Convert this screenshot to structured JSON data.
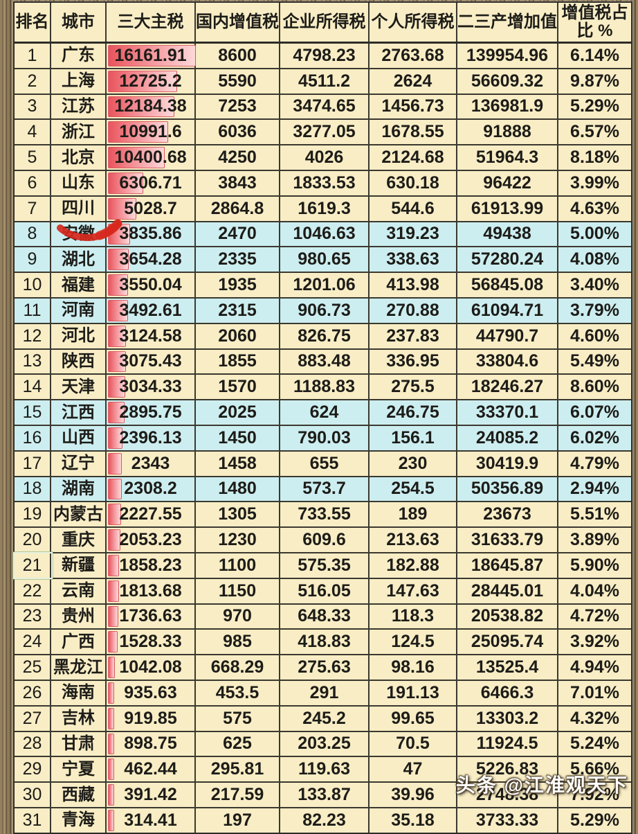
{
  "chart_data": {
    "type": "table",
    "columns": [
      "排名",
      "城市",
      "三大主税",
      "国内增值税",
      "企业所得税",
      "个人所得税",
      "二三产增加值",
      "增值税占\n比 %"
    ],
    "max_main_tax": 16161.91,
    "rows": [
      {
        "rank": "1",
        "city": "广东",
        "main_tax": "16161.91",
        "domestic_vat": "8600",
        "corporate_income_tax": "4798.23",
        "personal_income_tax": "2763.68",
        "secondary_tertiary_added_value": "139954.96",
        "vat_share": "6.14%",
        "highlighted": false
      },
      {
        "rank": "2",
        "city": "上海",
        "main_tax": "12725.2",
        "domestic_vat": "5590",
        "corporate_income_tax": "4511.2",
        "personal_income_tax": "2624",
        "secondary_tertiary_added_value": "56609.32",
        "vat_share": "9.87%",
        "highlighted": false
      },
      {
        "rank": "3",
        "city": "江苏",
        "main_tax": "12184.38",
        "domestic_vat": "7253",
        "corporate_income_tax": "3474.65",
        "personal_income_tax": "1456.73",
        "secondary_tertiary_added_value": "136981.9",
        "vat_share": "5.29%",
        "highlighted": false
      },
      {
        "rank": "4",
        "city": "浙江",
        "main_tax": "10991.6",
        "domestic_vat": "6036",
        "corporate_income_tax": "3277.05",
        "personal_income_tax": "1678.55",
        "secondary_tertiary_added_value": "91888",
        "vat_share": "6.57%",
        "highlighted": false
      },
      {
        "rank": "5",
        "city": "北京",
        "main_tax": "10400.68",
        "domestic_vat": "4250",
        "corporate_income_tax": "4026",
        "personal_income_tax": "2124.68",
        "secondary_tertiary_added_value": "51964.3",
        "vat_share": "8.18%",
        "highlighted": false
      },
      {
        "rank": "6",
        "city": "山东",
        "main_tax": "6306.71",
        "domestic_vat": "3843",
        "corporate_income_tax": "1833.53",
        "personal_income_tax": "630.18",
        "secondary_tertiary_added_value": "96422",
        "vat_share": "3.99%",
        "highlighted": false
      },
      {
        "rank": "7",
        "city": "四川",
        "main_tax": "5028.7",
        "domestic_vat": "2864.8",
        "corporate_income_tax": "1619.3",
        "personal_income_tax": "544.6",
        "secondary_tertiary_added_value": "61913.99",
        "vat_share": "4.63%",
        "highlighted": false
      },
      {
        "rank": "8",
        "city": "安徽",
        "main_tax": "3835.86",
        "domestic_vat": "2470",
        "corporate_income_tax": "1046.63",
        "personal_income_tax": "319.23",
        "secondary_tertiary_added_value": "49438",
        "vat_share": "5.00%",
        "highlighted": true
      },
      {
        "rank": "9",
        "city": "湖北",
        "main_tax": "3654.28",
        "domestic_vat": "2335",
        "corporate_income_tax": "980.65",
        "personal_income_tax": "338.63",
        "secondary_tertiary_added_value": "57280.24",
        "vat_share": "4.08%",
        "highlighted": true
      },
      {
        "rank": "10",
        "city": "福建",
        "main_tax": "3550.04",
        "domestic_vat": "1935",
        "corporate_income_tax": "1201.06",
        "personal_income_tax": "413.98",
        "secondary_tertiary_added_value": "56845.08",
        "vat_share": "3.40%",
        "highlighted": false
      },
      {
        "rank": "11",
        "city": "河南",
        "main_tax": "3492.61",
        "domestic_vat": "2315",
        "corporate_income_tax": "906.73",
        "personal_income_tax": "270.88",
        "secondary_tertiary_added_value": "61094.71",
        "vat_share": "3.79%",
        "highlighted": true
      },
      {
        "rank": "12",
        "city": "河北",
        "main_tax": "3124.58",
        "domestic_vat": "2060",
        "corporate_income_tax": "826.75",
        "personal_income_tax": "237.83",
        "secondary_tertiary_added_value": "44790.7",
        "vat_share": "4.60%",
        "highlighted": false
      },
      {
        "rank": "13",
        "city": "陕西",
        "main_tax": "3075.43",
        "domestic_vat": "1855",
        "corporate_income_tax": "883.48",
        "personal_income_tax": "336.95",
        "secondary_tertiary_added_value": "33804.6",
        "vat_share": "5.49%",
        "highlighted": false
      },
      {
        "rank": "14",
        "city": "天津",
        "main_tax": "3034.33",
        "domestic_vat": "1570",
        "corporate_income_tax": "1188.83",
        "personal_income_tax": "275.5",
        "secondary_tertiary_added_value": "18246.27",
        "vat_share": "8.60%",
        "highlighted": false
      },
      {
        "rank": "15",
        "city": "江西",
        "main_tax": "2895.75",
        "domestic_vat": "2025",
        "corporate_income_tax": "624",
        "personal_income_tax": "246.75",
        "secondary_tertiary_added_value": "33370.1",
        "vat_share": "6.07%",
        "highlighted": true
      },
      {
        "rank": "16",
        "city": "山西",
        "main_tax": "2396.13",
        "domestic_vat": "1450",
        "corporate_income_tax": "790.03",
        "personal_income_tax": "156.1",
        "secondary_tertiary_added_value": "24085.2",
        "vat_share": "6.02%",
        "highlighted": true
      },
      {
        "rank": "17",
        "city": "辽宁",
        "main_tax": "2343",
        "domestic_vat": "1458",
        "corporate_income_tax": "655",
        "personal_income_tax": "230",
        "secondary_tertiary_added_value": "30419.9",
        "vat_share": "4.79%",
        "highlighted": false
      },
      {
        "rank": "18",
        "city": "湖南",
        "main_tax": "2308.2",
        "domestic_vat": "1480",
        "corporate_income_tax": "573.7",
        "personal_income_tax": "254.5",
        "secondary_tertiary_added_value": "50356.89",
        "vat_share": "2.94%",
        "highlighted": true
      },
      {
        "rank": "19",
        "city": "内蒙古",
        "main_tax": "2227.55",
        "domestic_vat": "1305",
        "corporate_income_tax": "733.55",
        "personal_income_tax": "189",
        "secondary_tertiary_added_value": "23673",
        "vat_share": "5.51%",
        "highlighted": false
      },
      {
        "rank": "20",
        "city": "重庆",
        "main_tax": "2053.23",
        "domestic_vat": "1230",
        "corporate_income_tax": "609.6",
        "personal_income_tax": "213.63",
        "secondary_tertiary_added_value": "31633.79",
        "vat_share": "3.89%",
        "highlighted": false
      },
      {
        "rank": "21",
        "city": "新疆",
        "main_tax": "1858.23",
        "domestic_vat": "1100",
        "corporate_income_tax": "575.35",
        "personal_income_tax": "182.88",
        "secondary_tertiary_added_value": "18645.87",
        "vat_share": "5.90%",
        "highlighted": false,
        "rank_selected": true
      },
      {
        "rank": "22",
        "city": "云南",
        "main_tax": "1813.68",
        "domestic_vat": "1150",
        "corporate_income_tax": "516.05",
        "personal_income_tax": "147.63",
        "secondary_tertiary_added_value": "28445.01",
        "vat_share": "4.04%",
        "highlighted": false
      },
      {
        "rank": "23",
        "city": "贵州",
        "main_tax": "1736.63",
        "domestic_vat": "970",
        "corporate_income_tax": "648.33",
        "personal_income_tax": "118.3",
        "secondary_tertiary_added_value": "20538.82",
        "vat_share": "4.72%",
        "highlighted": false
      },
      {
        "rank": "24",
        "city": "广西",
        "main_tax": "1528.33",
        "domestic_vat": "985",
        "corporate_income_tax": "418.83",
        "personal_income_tax": "124.5",
        "secondary_tertiary_added_value": "25095.74",
        "vat_share": "3.92%",
        "highlighted": false
      },
      {
        "rank": "25",
        "city": "黑龙江",
        "main_tax": "1042.08",
        "domestic_vat": "668.29",
        "corporate_income_tax": "275.63",
        "personal_income_tax": "98.16",
        "secondary_tertiary_added_value": "13525.4",
        "vat_share": "4.94%",
        "highlighted": false
      },
      {
        "rank": "26",
        "city": "海南",
        "main_tax": "935.63",
        "domestic_vat": "453.5",
        "corporate_income_tax": "291",
        "personal_income_tax": "191.13",
        "secondary_tertiary_added_value": "6466.3",
        "vat_share": "7.01%",
        "highlighted": false
      },
      {
        "rank": "27",
        "city": "吉林",
        "main_tax": "919.85",
        "domestic_vat": "575",
        "corporate_income_tax": "245.2",
        "personal_income_tax": "99.65",
        "secondary_tertiary_added_value": "13303.2",
        "vat_share": "4.32%",
        "highlighted": false
      },
      {
        "rank": "28",
        "city": "甘肃",
        "main_tax": "898.75",
        "domestic_vat": "625",
        "corporate_income_tax": "203.25",
        "personal_income_tax": "70.5",
        "secondary_tertiary_added_value": "11924.5",
        "vat_share": "5.24%",
        "highlighted": false
      },
      {
        "rank": "29",
        "city": "宁夏",
        "main_tax": "462.44",
        "domestic_vat": "295.81",
        "corporate_income_tax": "119.63",
        "personal_income_tax": "47",
        "secondary_tertiary_added_value": "5226.83",
        "vat_share": "5.66%",
        "highlighted": false
      },
      {
        "rank": "30",
        "city": "西藏",
        "main_tax": "391.42",
        "domestic_vat": "217.59",
        "corporate_income_tax": "133.87",
        "personal_income_tax": "39.96",
        "secondary_tertiary_added_value": "2748.38",
        "vat_share": "7.92%",
        "highlighted": false
      },
      {
        "rank": "31",
        "city": "青海",
        "main_tax": "314.41",
        "domestic_vat": "197",
        "corporate_income_tax": "82.23",
        "personal_income_tax": "35.18",
        "secondary_tertiary_added_value": "3733.33",
        "vat_share": "5.29%",
        "highlighted": false
      }
    ]
  },
  "annotations": {
    "red_underline_city": "安徽",
    "selected_rank_cell": "21"
  },
  "watermark": {
    "text": "头条 @江淮观天下"
  },
  "colors": {
    "row_default_bg": "#f8edc5",
    "row_highlight_bg": "#cdeef0",
    "bar_gradient_start": "#e9545c",
    "bar_gradient_end": "#fcd9da",
    "annotation_red": "#d7281d",
    "border": "#3a382f"
  }
}
